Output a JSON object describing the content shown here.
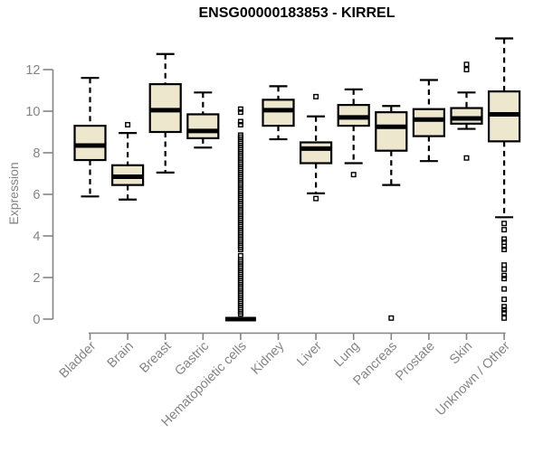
{
  "page": {
    "background": "#ffffff"
  },
  "chart_data": {
    "type": "boxplot",
    "title": "ENSG00000183853 - KIRREL",
    "xlabel": "",
    "ylabel": "Expression",
    "y_axis": {
      "min": 0,
      "max": 12,
      "ticks": [
        0,
        2,
        4,
        6,
        8,
        10,
        12
      ]
    },
    "grid": "off",
    "legend": "none",
    "colors": {
      "box_fill": "#EDE7CE",
      "box_border": "#000000",
      "median": "#000000",
      "whisker": "#000000",
      "axis": "#848484",
      "tick_label": "#848484",
      "title_text": "#000000",
      "background": "#ffffff"
    },
    "categories": [
      "Bladder",
      "Brain",
      "Breast",
      "Gastric",
      "Hematopoietic cells",
      "Kidney",
      "Liver",
      "Lung",
      "Pancreas",
      "Prostate",
      "Skin",
      "Unknown / Other"
    ],
    "series": [
      {
        "category": "Bladder",
        "whisker_low": 5.9,
        "q1": 7.65,
        "median": 8.35,
        "q3": 9.3,
        "whisker_high": 11.6,
        "outliers": []
      },
      {
        "category": "Brain",
        "whisker_low": 5.75,
        "q1": 6.45,
        "median": 6.85,
        "q3": 7.4,
        "whisker_high": 8.95,
        "outliers": [
          9.35
        ]
      },
      {
        "category": "Breast",
        "whisker_low": 7.05,
        "q1": 9.0,
        "median": 10.05,
        "q3": 11.3,
        "whisker_high": 12.75,
        "outliers": []
      },
      {
        "category": "Gastric",
        "whisker_low": 8.25,
        "q1": 8.7,
        "median": 9.05,
        "q3": 9.85,
        "whisker_high": 10.9,
        "outliers": []
      },
      {
        "category": "Hematopoietic cells",
        "whisker_low": 0,
        "q1": 0,
        "median": 0,
        "q3": 0,
        "whisker_high": 0,
        "outliers": [
          10.1,
          9.95,
          9.5,
          9.35,
          8.85,
          8.75,
          8.65,
          8.55,
          8.45,
          8.35,
          8.25,
          8.15,
          8.05,
          7.95,
          7.85,
          7.75,
          7.65,
          7.55,
          7.45,
          7.35,
          7.25,
          7.15,
          7.05,
          6.95,
          6.85,
          6.75,
          6.65,
          6.55,
          6.45,
          6.35,
          6.25,
          6.15,
          6.05,
          5.95,
          5.85,
          5.75,
          5.65,
          5.55,
          5.45,
          5.35,
          5.25,
          5.15,
          5.05,
          4.95,
          4.85,
          4.75,
          4.65,
          4.55,
          4.45,
          4.35,
          4.25,
          4.15,
          4.05,
          3.95,
          3.85,
          3.75,
          3.65,
          3.55,
          3.45,
          3.35,
          3.05,
          2.85,
          2.75,
          2.65,
          2.55,
          2.45,
          2.35,
          2.25,
          2.15,
          2.05,
          1.95,
          1.85,
          1.75,
          1.65,
          1.55,
          1.45,
          1.35,
          1.25,
          1.15,
          1.05,
          0.95,
          0.85,
          0.75,
          0.65,
          0.55,
          0.45,
          0.35,
          0.25
        ]
      },
      {
        "category": "Kidney",
        "whisker_low": 8.65,
        "q1": 9.3,
        "median": 10.05,
        "q3": 10.55,
        "whisker_high": 11.2,
        "outliers": []
      },
      {
        "category": "Liver",
        "whisker_low": 6.05,
        "q1": 7.5,
        "median": 8.2,
        "q3": 8.5,
        "whisker_high": 9.75,
        "outliers": [
          10.7,
          5.8
        ]
      },
      {
        "category": "Lung",
        "whisker_low": 7.5,
        "q1": 9.3,
        "median": 9.7,
        "q3": 10.3,
        "whisker_high": 11.05,
        "outliers": [
          6.95
        ]
      },
      {
        "category": "Pancreas",
        "whisker_low": 6.45,
        "q1": 8.1,
        "median": 9.25,
        "q3": 9.95,
        "whisker_high": 10.25,
        "outliers": [
          0.05
        ]
      },
      {
        "category": "Prostate",
        "whisker_low": 7.6,
        "q1": 8.8,
        "median": 9.6,
        "q3": 10.1,
        "whisker_high": 11.5,
        "outliers": []
      },
      {
        "category": "Skin",
        "whisker_low": 9.15,
        "q1": 9.4,
        "median": 9.65,
        "q3": 10.15,
        "whisker_high": 10.9,
        "outliers": [
          12.25,
          12.0,
          7.75
        ]
      },
      {
        "category": "Unknown / Other",
        "whisker_low": 4.9,
        "q1": 8.55,
        "median": 9.85,
        "q3": 10.95,
        "whisker_high": 13.5,
        "outliers": [
          4.6,
          4.3,
          3.85,
          3.7,
          3.5,
          3.35,
          2.6,
          2.4,
          2.1,
          1.95,
          1.45,
          0.95,
          0.6,
          0.45,
          0.3,
          0.05
        ]
      }
    ]
  }
}
